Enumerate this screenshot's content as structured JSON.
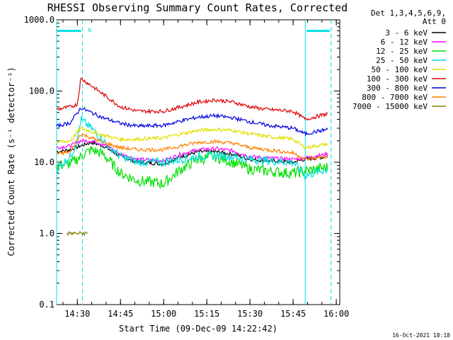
{
  "chart_data": {
    "type": "line",
    "title": "RHESSI Observing Summary Count Rates, Corrected",
    "ylabel": "Corrected Count Rate (s⁻¹ detector⁻¹)",
    "xlabel": "Start Time (09-Dec-09 14:22:42)",
    "footer": "16-Oct-2021 18:18",
    "y_scale": "log",
    "ylim": [
      0.1,
      1000
    ],
    "y_ticks": [
      {
        "value": 0.1,
        "label": "0.1"
      },
      {
        "value": 1,
        "label": "1.0"
      },
      {
        "value": 10,
        "label": "10.0"
      },
      {
        "value": 100,
        "label": "100.0"
      },
      {
        "value": 1000,
        "label": "1000.0"
      }
    ],
    "xlim_minutes": [
      14.38,
      16.02
    ],
    "x_ticks": [
      {
        "value": 14.5,
        "label": "14:30"
      },
      {
        "value": 14.75,
        "label": "14:45"
      },
      {
        "value": 15.0,
        "label": "15:00"
      },
      {
        "value": 15.25,
        "label": "15:15"
      },
      {
        "value": 15.5,
        "label": "15:30"
      },
      {
        "value": 15.75,
        "label": "15:45"
      },
      {
        "value": 16.0,
        "label": "16:00"
      }
    ],
    "legend_header": [
      "Det 1,3,4,5,6,9,",
      "Att 0"
    ],
    "legend_position": "right",
    "series": [
      {
        "name": "3 - 6 keV",
        "color": "#000000",
        "x": [
          14.38,
          14.46,
          14.52,
          14.58,
          14.65,
          14.75,
          14.85,
          15.0,
          15.1,
          15.2,
          15.3,
          15.4,
          15.5,
          15.6,
          15.75,
          15.82,
          15.95
        ],
        "y": [
          14,
          15,
          17,
          19,
          17,
          12,
          10,
          9.5,
          12,
          14,
          14,
          13,
          11,
          10.5,
          10,
          11,
          12
        ]
      },
      {
        "name": "6 - 12 keV",
        "color": "#ff00ff",
        "x": [
          14.38,
          14.46,
          14.52,
          14.58,
          14.65,
          14.75,
          14.85,
          15.0,
          15.1,
          15.2,
          15.3,
          15.4,
          15.5,
          15.6,
          15.75,
          15.82,
          15.95
        ],
        "y": [
          16,
          17,
          20,
          20,
          18,
          13,
          11,
          10.5,
          13,
          15,
          15.5,
          14.5,
          12,
          11.5,
          11,
          11.5,
          13
        ]
      },
      {
        "name": "12 - 25 keV",
        "color": "#00e000",
        "x": [
          14.38,
          14.46,
          14.52,
          14.58,
          14.65,
          14.75,
          14.85,
          15.0,
          15.1,
          15.2,
          15.3,
          15.4,
          15.5,
          15.6,
          15.75,
          15.82,
          15.95
        ],
        "y": [
          9,
          9.5,
          12,
          15,
          13,
          7,
          5.5,
          5,
          8,
          11,
          12,
          10,
          8,
          7.5,
          7,
          7.5,
          8.5
        ]
      },
      {
        "name": "25 - 50 keV",
        "color": "#00e0e0",
        "x": [
          14.38,
          14.46,
          14.5,
          14.52,
          14.58,
          14.65,
          14.75,
          14.85,
          15.0,
          15.1,
          15.2,
          15.3,
          15.4,
          15.5,
          15.6,
          15.75,
          15.82,
          15.95
        ],
        "y": [
          8,
          12,
          20,
          40,
          30,
          20,
          12,
          10,
          10,
          11,
          12,
          12.5,
          12,
          11,
          10.5,
          10,
          6.5,
          8
        ]
      },
      {
        "name": "50 - 100 keV",
        "color": "#e0e000",
        "x": [
          14.38,
          14.46,
          14.52,
          14.58,
          14.65,
          14.75,
          14.85,
          15.0,
          15.1,
          15.2,
          15.3,
          15.4,
          15.5,
          15.6,
          15.75,
          15.82,
          15.95
        ],
        "y": [
          19,
          20,
          30,
          27,
          24,
          21,
          21,
          22,
          25,
          28,
          29,
          28,
          25,
          23,
          21,
          16,
          18
        ]
      },
      {
        "name": "100 - 300 keV",
        "color": "#e00000",
        "x": [
          14.38,
          14.46,
          14.5,
          14.52,
          14.58,
          14.65,
          14.75,
          14.85,
          15.0,
          15.1,
          15.2,
          15.3,
          15.4,
          15.5,
          15.6,
          15.75,
          15.82,
          15.95
        ],
        "y": [
          55,
          60,
          65,
          150,
          120,
          90,
          60,
          52,
          52,
          60,
          70,
          75,
          70,
          60,
          55,
          52,
          40,
          48
        ]
      },
      {
        "name": "300 - 800 keV",
        "color": "#0000e0",
        "x": [
          14.38,
          14.46,
          14.52,
          14.58,
          14.65,
          14.75,
          14.85,
          15.0,
          15.1,
          15.2,
          15.3,
          15.4,
          15.5,
          15.6,
          15.75,
          15.82,
          15.95
        ],
        "y": [
          32,
          36,
          58,
          50,
          42,
          35,
          32,
          33,
          38,
          43,
          45,
          42,
          37,
          33,
          30,
          25,
          29
        ]
      },
      {
        "name": "800 - 7000 keV",
        "color": "#ff8000",
        "x": [
          14.38,
          14.46,
          14.52,
          14.58,
          14.65,
          14.75,
          14.85,
          15.0,
          15.1,
          15.2,
          15.3,
          15.4,
          15.5,
          15.6,
          15.75,
          15.82,
          15.95
        ],
        "y": [
          13,
          14,
          25,
          22,
          19,
          16,
          15,
          15,
          17,
          19,
          19.5,
          18.5,
          16,
          15,
          13.5,
          11,
          12
        ]
      },
      {
        "name": "7000 - 15000 keV",
        "color": "#808000",
        "x": [
          14.44,
          14.48,
          14.52,
          14.56
        ],
        "y": [
          1,
          1,
          1,
          1
        ]
      }
    ],
    "attenuator_bars": [
      {
        "x_start": 14.38,
        "x_end": 14.53,
        "label": "N"
      },
      {
        "x_start": 15.82,
        "x_end": 15.97,
        "label": ""
      }
    ],
    "vertical_markers": [
      {
        "x": 14.38,
        "style": "solid"
      },
      {
        "x": 14.53,
        "style": "dashed"
      },
      {
        "x": 15.82,
        "style": "solid"
      },
      {
        "x": 15.97,
        "style": "dashed"
      }
    ],
    "marker_color": "#00e0e0"
  }
}
